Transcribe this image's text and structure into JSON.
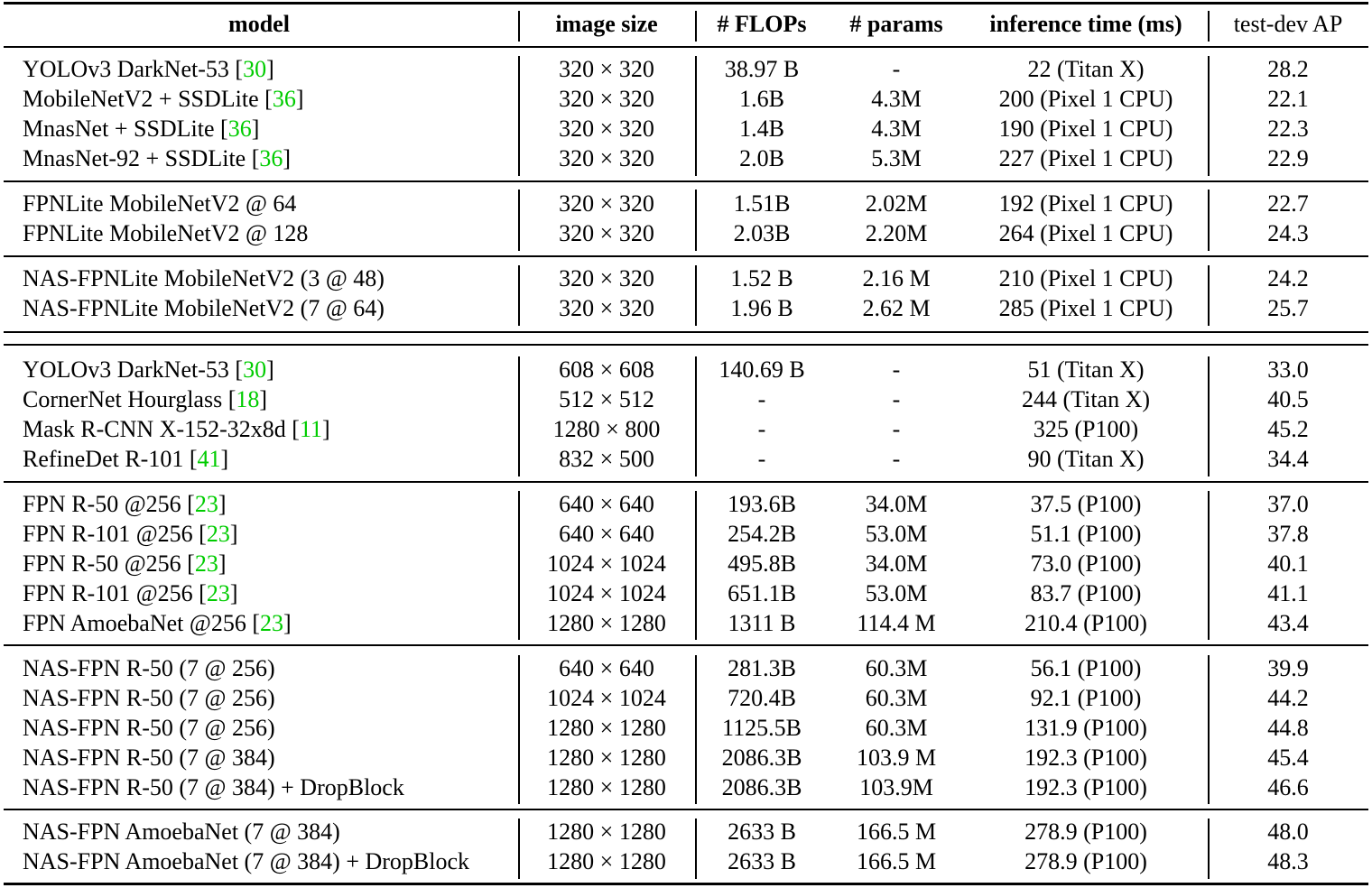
{
  "headers": {
    "model": "model",
    "image_size": "image size",
    "flops": "# FLOPs",
    "params": "# params",
    "inference": "inference time (ms)",
    "ap": "test-dev AP"
  },
  "rows": [
    {
      "model": "YOLOv3 DarkNet-53",
      "ref": "30",
      "size": "320 × 320",
      "flops": "38.97 B",
      "params": "-",
      "inference": "22 (Titan X)",
      "ap": "28.2"
    },
    {
      "model": "MobileNetV2 + SSDLite",
      "ref": "36",
      "size": "320 × 320",
      "flops": "1.6B",
      "params": "4.3M",
      "inference": "200 (Pixel 1 CPU)",
      "ap": "22.1"
    },
    {
      "model": "MnasNet + SSDLite",
      "ref": "36",
      "size": "320 × 320",
      "flops": "1.4B",
      "params": "4.3M",
      "inference": "190 (Pixel 1 CPU)",
      "ap": "22.3"
    },
    {
      "model": "MnasNet-92 + SSDLite",
      "ref": "36",
      "size": "320 × 320",
      "flops": "2.0B",
      "params": "5.3M",
      "inference": "227 (Pixel 1 CPU)",
      "ap": "22.9"
    },
    {
      "model": "FPNLite MobileNetV2  @ 64",
      "ref": "",
      "size": "320 × 320",
      "flops": "1.51B",
      "params": "2.02M",
      "inference": "192 (Pixel 1 CPU)",
      "ap": "22.7"
    },
    {
      "model": "FPNLite MobileNetV2  @ 128",
      "ref": "",
      "size": "320 × 320",
      "flops": "2.03B",
      "params": "2.20M",
      "inference": "264 (Pixel 1 CPU)",
      "ap": "24.3"
    },
    {
      "model": "NAS-FPNLite MobileNetV2 (3 @ 48)",
      "ref": "",
      "size": "320 × 320",
      "flops": "1.52 B",
      "params": "2.16 M",
      "inference": "210 (Pixel 1 CPU)",
      "ap": "24.2"
    },
    {
      "model": "NAS-FPNLite MobileNetV2 (7 @ 64)",
      "ref": "",
      "size": "320 × 320",
      "flops": "1.96 B",
      "params": "2.62 M",
      "inference": "285 (Pixel 1 CPU)",
      "ap": "25.7"
    },
    {
      "model": "YOLOv3 DarkNet-53",
      "ref": "30",
      "size": "608 × 608",
      "flops": "140.69 B",
      "params": "-",
      "inference": "51 (Titan X)",
      "ap": "33.0"
    },
    {
      "model": "CornerNet Hourglass",
      "ref": "18",
      "size": "512 × 512",
      "flops": "-",
      "params": "-",
      "inference": "244 (Titan X)",
      "ap": "40.5"
    },
    {
      "model": "Mask R-CNN X-152-32x8d",
      "ref": "11",
      "size": "1280 × 800",
      "flops": "-",
      "params": "-",
      "inference": "325 (P100)",
      "ap": "45.2"
    },
    {
      "model": "RefineDet R-101",
      "ref": "41",
      "size": "832 × 500",
      "flops": "-",
      "params": "-",
      "inference": "90 (Titan X)",
      "ap": "34.4"
    },
    {
      "model": "FPN R-50 @256",
      "ref": "23",
      "size": "640 × 640",
      "flops": "193.6B",
      "params": "34.0M",
      "inference": "37.5 (P100)",
      "ap": "37.0"
    },
    {
      "model": "FPN R-101 @256",
      "ref": "23",
      "size": "640 × 640",
      "flops": "254.2B",
      "params": "53.0M",
      "inference": "51.1 (P100)",
      "ap": "37.8"
    },
    {
      "model": "FPN R-50 @256",
      "ref": "23",
      "size": "1024 × 1024",
      "flops": "495.8B",
      "params": "34.0M",
      "inference": "73.0 (P100)",
      "ap": "40.1"
    },
    {
      "model": "FPN R-101 @256",
      "ref": "23",
      "size": "1024 × 1024",
      "flops": "651.1B",
      "params": "53.0M",
      "inference": "83.7 (P100)",
      "ap": "41.1"
    },
    {
      "model": "FPN AmoebaNet @256",
      "ref": "23",
      "size": "1280 × 1280",
      "flops": "1311 B",
      "params": "114.4 M",
      "inference": "210.4 (P100)",
      "ap": "43.4"
    },
    {
      "model": "NAS-FPN R-50 (7 @ 256)",
      "ref": "",
      "size": "640 × 640",
      "flops": "281.3B",
      "params": "60.3M",
      "inference": "56.1 (P100)",
      "ap": "39.9"
    },
    {
      "model": "NAS-FPN R-50 (7 @ 256)",
      "ref": "",
      "size": "1024 × 1024",
      "flops": "720.4B",
      "params": "60.3M",
      "inference": "92.1 (P100)",
      "ap": "44.2"
    },
    {
      "model": "NAS-FPN R-50 (7 @ 256)",
      "ref": "",
      "size": "1280 × 1280",
      "flops": "1125.5B",
      "params": "60.3M",
      "inference": "131.9 (P100)",
      "ap": "44.8"
    },
    {
      "model": "NAS-FPN R-50 (7 @ 384)",
      "ref": "",
      "size": "1280 × 1280",
      "flops": "2086.3B",
      "params": "103.9 M",
      "inference": "192.3 (P100)",
      "ap": "45.4"
    },
    {
      "model": "NAS-FPN R-50 (7 @ 384) + DropBlock",
      "ref": "",
      "size": "1280 × 1280",
      "flops": "2086.3B",
      "params": "103.9M",
      "inference": "192.3 (P100)",
      "ap": "46.6"
    },
    {
      "model": "NAS-FPN AmoebaNet (7 @ 384)",
      "ref": "",
      "size": "1280 × 1280",
      "flops": "2633 B",
      "params": "166.5 M",
      "inference": "278.9 (P100)",
      "ap": "48.0"
    },
    {
      "model": "NAS-FPN AmoebaNet (7 @ 384) + DropBlock",
      "ref": "",
      "size": "1280 × 1280",
      "flops": "2633 B",
      "params": "166.5 M",
      "inference": "278.9 (P100)",
      "ap": "48.3"
    }
  ]
}
